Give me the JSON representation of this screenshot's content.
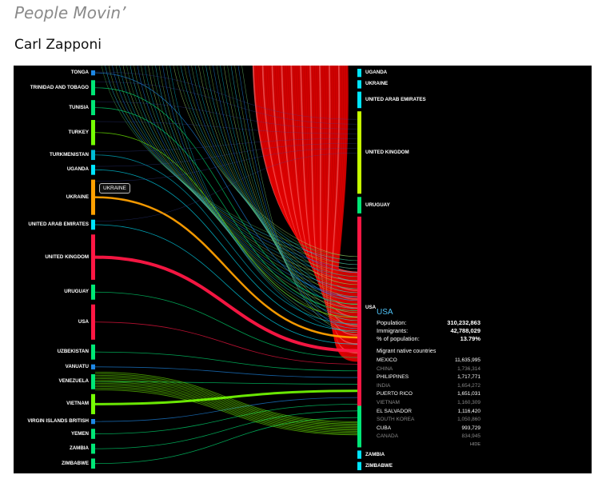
{
  "header": {
    "title": "People Movin’",
    "author": "Carl Zapponi"
  },
  "left_nodes": [
    {
      "name": "TONGA",
      "color": "#1e88e5",
      "w": 1
    },
    {
      "name": "TRINIDAD AND TOBAGO",
      "color": "#00e676",
      "w": 3
    },
    {
      "name": "TUNISIA",
      "color": "#00e676",
      "w": 3
    },
    {
      "name": "TURKEY",
      "color": "#76ff03",
      "w": 5
    },
    {
      "name": "TURKMENISTAN",
      "color": "#00bcd4",
      "w": 2
    },
    {
      "name": "UGANDA",
      "color": "#00e5ff",
      "w": 2
    },
    {
      "name": "UKRAINE",
      "color": "#ffa000",
      "w": 7
    },
    {
      "name": "UNITED ARAB EMIRATES",
      "color": "#00e5ff",
      "w": 2
    },
    {
      "name": "UNITED KINGDOM",
      "color": "#ff1744",
      "w": 9
    },
    {
      "name": "URUGUAY",
      "color": "#00e676",
      "w": 3
    },
    {
      "name": "USA",
      "color": "#ff1744",
      "w": 7
    },
    {
      "name": "UZBEKISTAN",
      "color": "#00e676",
      "w": 3
    },
    {
      "name": "VANUATU",
      "color": "#1e88e5",
      "w": 1
    },
    {
      "name": "VENEZUELA",
      "color": "#00e676",
      "w": 3
    },
    {
      "name": "VIETNAM",
      "color": "#76ff03",
      "w": 4
    },
    {
      "name": "VIRGIN ISLANDS BRITISH",
      "color": "#1e88e5",
      "w": 1
    },
    {
      "name": "YEMEN",
      "color": "#00e676",
      "w": 2
    },
    {
      "name": "ZAMBIA",
      "color": "#00e676",
      "w": 2
    },
    {
      "name": "ZIMBABWE",
      "color": "#00e676",
      "w": 2
    }
  ],
  "right_nodes": [
    {
      "name": "UGANDA",
      "color": "#00e5ff",
      "w": 1
    },
    {
      "name": "UKRAINE",
      "color": "#00e5ff",
      "w": 1
    },
    {
      "name": "UNITED ARAB EMIRATES",
      "color": "#00e5ff",
      "w": 2
    },
    {
      "name": "UNITED KINGDOM",
      "color": "#c6ff00",
      "w": 10
    },
    {
      "name": "URUGUAY",
      "color": "#00e676",
      "w": 2
    },
    {
      "name": "USA",
      "color": "#ff1744",
      "w": 28
    },
    {
      "name": "ZAMBIA",
      "color": "#00e5ff",
      "w": 1
    },
    {
      "name": "ZIMBABWE",
      "color": "#00e5ff",
      "w": 1
    }
  ],
  "tooltip": "UKRAINE",
  "panel": {
    "country": "USA",
    "stats": [
      {
        "label": "Population:",
        "value": "310,232,863"
      },
      {
        "label": "Immigrants:",
        "value": "42,788,029"
      },
      {
        "label": "% of population:",
        "value": "13.79%"
      }
    ],
    "subtitle": "Migrant native countries",
    "rows": [
      {
        "name": "MEXICO",
        "value": "11,635,995"
      },
      {
        "name": "CHINA",
        "value": "1,736,314"
      },
      {
        "name": "PHILIPPINES",
        "value": "1,717,771"
      },
      {
        "name": "INDIA",
        "value": "1,654,272"
      },
      {
        "name": "PUERTO RICO",
        "value": "1,651,031"
      },
      {
        "name": "VIETNAM",
        "value": "1,160,309"
      },
      {
        "name": "EL SALVADOR",
        "value": "1,116,420"
      },
      {
        "name": "SOUTH KOREA",
        "value": "1,050,860"
      },
      {
        "name": "CUBA",
        "value": "993,729"
      },
      {
        "name": "CANADA",
        "value": "834,945"
      }
    ],
    "hide_label": "HIDE"
  }
}
